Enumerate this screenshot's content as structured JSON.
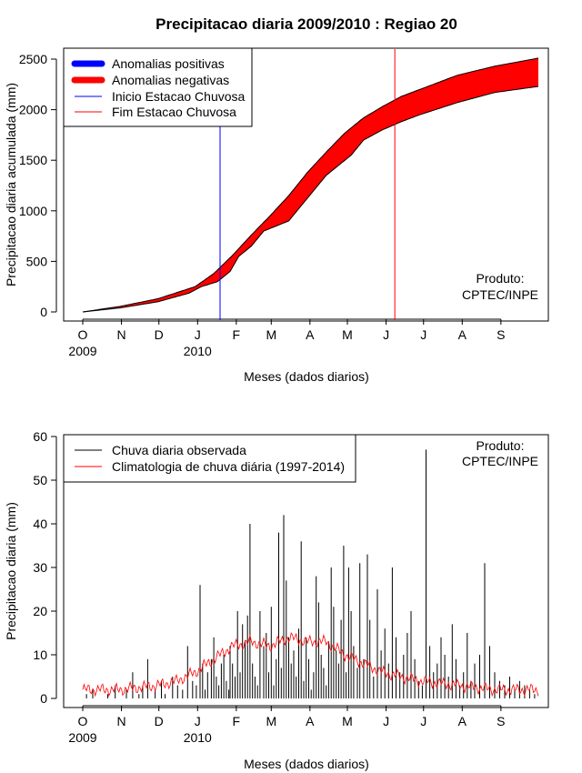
{
  "chart_data": [
    {
      "type": "area",
      "title": "Precipitacao diaria 2009/2010 : Regiao 20",
      "xlabel": "Meses (dados diarios)",
      "ylabel": "Precipitacao diaria acumulada (mm)",
      "ylim": [
        0,
        2500
      ],
      "yticks": [
        0,
        500,
        1000,
        1500,
        2000,
        2500
      ],
      "month_labels": [
        "O",
        "N",
        "D",
        "J",
        "F",
        "M",
        "A",
        "M",
        "J",
        "J",
        "A",
        "S"
      ],
      "year_labels": [
        {
          "label": "2009",
          "month_index": 0
        },
        {
          "label": "2010",
          "month_index": 3
        }
      ],
      "legend": {
        "position": "top-left",
        "entries": [
          {
            "label": "Anomalias positivas",
            "color": "#0000ff",
            "style": "thick"
          },
          {
            "label": "Anomalias negativas",
            "color": "#ff0000",
            "style": "thick"
          },
          {
            "label": "Inicio Estacao Chuvosa",
            "color": "#0000ff",
            "style": "thin"
          },
          {
            "label": "Fim Estacao Chuvosa",
            "color": "#ff0000",
            "style": "thin"
          }
        ]
      },
      "credit": [
        "Produto:",
        "CPTEC/INPE"
      ],
      "x_unit": "day of hydrological year (0 = Oct 1 2009)",
      "climatology_cumulative": {
        "day": [
          0,
          30,
          60,
          90,
          105,
          120,
          135,
          150,
          165,
          180,
          195,
          210,
          225,
          240,
          255,
          270,
          285,
          300,
          330,
          365
        ],
        "value": [
          0,
          55,
          130,
          250,
          380,
          560,
          760,
          950,
          1150,
          1380,
          1580,
          1770,
          1920,
          2030,
          2130,
          2200,
          2270,
          2340,
          2430,
          2510
        ]
      },
      "observed_cumulative": {
        "day": [
          0,
          30,
          60,
          85,
          95,
          108,
          118,
          125,
          135,
          145,
          155,
          165,
          175,
          185,
          195,
          205,
          215,
          225,
          240,
          255,
          270,
          285,
          300,
          330,
          365
        ],
        "value": [
          0,
          40,
          100,
          185,
          250,
          300,
          400,
          550,
          650,
          800,
          850,
          900,
          1050,
          1200,
          1350,
          1450,
          1550,
          1700,
          1800,
          1880,
          1950,
          2010,
          2070,
          2170,
          2230
        ]
      },
      "inicio_estacao_chuvosa_day": 110,
      "fim_estacao_chuvosa_day": 250
    },
    {
      "type": "bar",
      "xlabel": "Meses (dados diarios)",
      "ylabel": "Precipitacao diaria (mm)",
      "ylim": [
        0,
        60
      ],
      "yticks": [
        0,
        10,
        20,
        30,
        40,
        50,
        60
      ],
      "month_labels": [
        "O",
        "N",
        "D",
        "J",
        "F",
        "M",
        "A",
        "M",
        "J",
        "J",
        "A",
        "S"
      ],
      "year_labels": [
        {
          "label": "2009",
          "month_index": 0
        },
        {
          "label": "2010",
          "month_index": 3
        }
      ],
      "legend": {
        "position": "top-left",
        "entries": [
          {
            "label": "Chuva diaria observada",
            "color": "#000000"
          },
          {
            "label": "Climatologia de chuva diária (1997-2014)",
            "color": "#ff0000"
          }
        ]
      },
      "credit": [
        "Produto:",
        "CPTEC/INPE"
      ],
      "x_unit": "day of hydrological year (0 = Oct 1 2009)",
      "climatology_daily": {
        "day": [
          0,
          30,
          60,
          75,
          90,
          105,
          120,
          135,
          150,
          165,
          180,
          195,
          210,
          225,
          240,
          255,
          270,
          285,
          300,
          330,
          365
        ],
        "value": [
          2,
          2,
          3,
          4,
          6,
          9,
          12,
          13,
          12,
          14,
          13,
          13,
          10,
          8,
          6,
          5,
          4,
          3.5,
          3,
          2,
          2
        ]
      },
      "observed_daily": {
        "day": [
          3,
          8,
          14,
          20,
          26,
          35,
          40,
          45,
          48,
          52,
          58,
          63,
          66,
          70,
          72,
          76,
          80,
          84,
          88,
          91,
          94,
          96,
          98,
          100,
          103,
          105,
          107,
          109,
          111,
          113,
          115,
          117,
          118,
          120,
          122,
          124,
          126,
          128,
          130,
          132,
          134,
          136,
          138,
          140,
          142,
          145,
          147,
          149,
          151,
          153,
          155,
          157,
          159,
          161,
          163,
          165,
          167,
          169,
          171,
          173,
          175,
          177,
          179,
          181,
          183,
          185,
          187,
          189,
          191,
          193,
          195,
          197,
          199,
          201,
          203,
          205,
          207,
          209,
          211,
          213,
          215,
          217,
          220,
          222,
          225,
          228,
          230,
          233,
          236,
          239,
          242,
          245,
          248,
          251,
          254,
          257,
          260,
          263,
          266,
          269,
          272,
          275,
          278,
          281,
          284,
          287,
          290,
          293,
          296,
          299,
          302,
          305,
          308,
          311,
          314,
          318,
          322,
          326,
          330,
          334,
          338,
          342,
          346,
          350,
          354,
          358,
          362
        ],
        "value": [
          1,
          2,
          0,
          1,
          3,
          2,
          6,
          1,
          3,
          9,
          2,
          4,
          1,
          0,
          5,
          3,
          2,
          12,
          4,
          3,
          26,
          8,
          2,
          6,
          9,
          14,
          5,
          3,
          8,
          10,
          4,
          2,
          12,
          8,
          5,
          20,
          6,
          17,
          13,
          19,
          40,
          8,
          5,
          3,
          20,
          12,
          15,
          6,
          21,
          3,
          9,
          38,
          7,
          42,
          27,
          14,
          8,
          11,
          5,
          16,
          36,
          4,
          14,
          9,
          2,
          6,
          28,
          22,
          10,
          7,
          3,
          13,
          30,
          21,
          11,
          8,
          18,
          35,
          6,
          30,
          20,
          12,
          7,
          31,
          9,
          33,
          18,
          5,
          25,
          11,
          16,
          8,
          30,
          14,
          6,
          10,
          15,
          20,
          9,
          4,
          3,
          57,
          12,
          6,
          8,
          14,
          10,
          5,
          17,
          9,
          3,
          6,
          15,
          4,
          8,
          10,
          31,
          12,
          6,
          4,
          3,
          5,
          2,
          4,
          3,
          2,
          1
        ]
      }
    }
  ]
}
